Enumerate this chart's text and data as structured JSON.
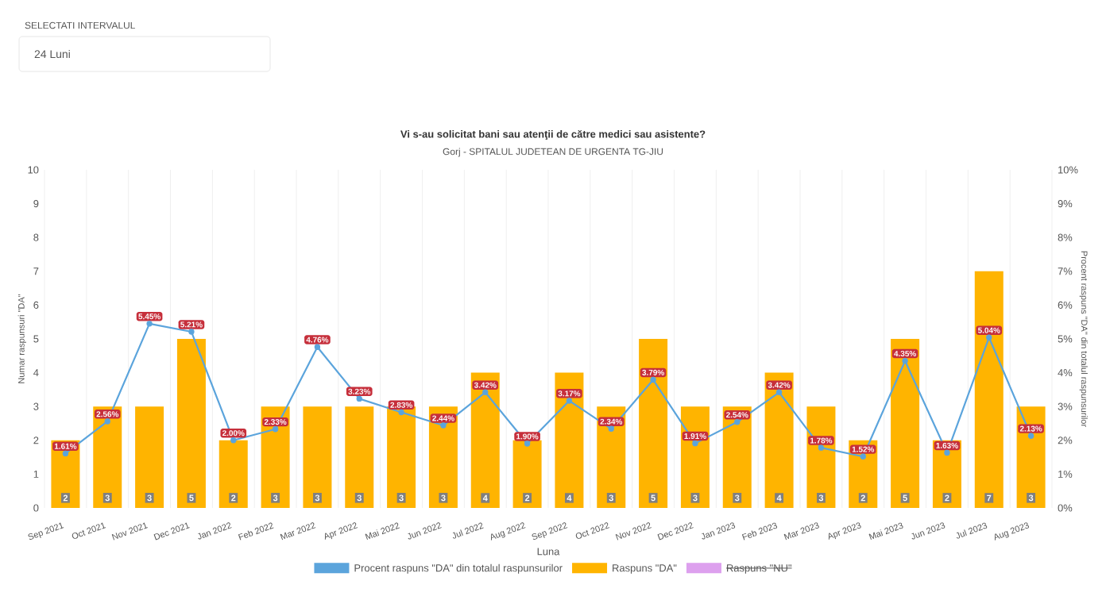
{
  "chart_data": {
    "type": "bar",
    "title": "Vi s-au solicitat bani sau atenţii de către medici sau asistente?",
    "subtitle": "Gorj - SPITALUL JUDETEAN DE URGENTA TG-JIU",
    "xlabel": "Luna",
    "ylabel": "Numar raspunsuri \"DA\"",
    "y2label": "Procent raspuns \"DA\" din totalul raspunsurilor",
    "annotations": [
      "SELECTATI INTERVALUL",
      "24 Luni"
    ],
    "categories": [
      "Sep 2021",
      "Oct 2021",
      "Nov 2021",
      "Dec 2021",
      "Jan 2022",
      "Feb 2022",
      "Mar 2022",
      "Apr 2022",
      "Mai 2022",
      "Jun 2022",
      "Jul 2022",
      "Aug 2022",
      "Sep 2022",
      "Oct 2022",
      "Nov 2022",
      "Dec 2022",
      "Jan 2023",
      "Feb 2023",
      "Mar 2023",
      "Apr 2023",
      "Mai 2023",
      "Jun 2023",
      "Jul 2023",
      "Aug 2023"
    ],
    "series": [
      {
        "name": "Procent raspuns \"DA\" din totalul raspunsurilor",
        "type": "line",
        "axis": "y2",
        "color": "#5ba4dc",
        "values": [
          1.61,
          2.56,
          5.45,
          5.21,
          2.0,
          2.33,
          4.76,
          3.23,
          2.83,
          2.44,
          3.42,
          1.9,
          3.17,
          2.34,
          3.79,
          1.91,
          2.54,
          3.42,
          1.78,
          1.52,
          4.35,
          1.63,
          5.04,
          2.13
        ],
        "value_labels": [
          "1.61%",
          "2.56%",
          "5.45%",
          "5.21%",
          "2.00%",
          "2.33%",
          "4.76%",
          "3.23%",
          "2.83%",
          "2.44%",
          "3.42%",
          "1.90%",
          "3.17%",
          "2.34%",
          "3.79%",
          "1.91%",
          "2.54%",
          "3.42%",
          "1.78%",
          "1.52%",
          "4.35%",
          "1.63%",
          "5.04%",
          "2.13%"
        ]
      },
      {
        "name": "Raspuns \"DA\"",
        "color": "#ffb400",
        "values": [
          2,
          3,
          3,
          5,
          2,
          3,
          3,
          3,
          3,
          3,
          4,
          2,
          4,
          3,
          5,
          3,
          3,
          4,
          3,
          2,
          5,
          2,
          7,
          3
        ]
      },
      {
        "name": "Raspuns \"NU\"",
        "color": "#dda0ee",
        "values": [
          null,
          null,
          null,
          null,
          null,
          null,
          null,
          null,
          null,
          null,
          null,
          null,
          null,
          null,
          null,
          null,
          null,
          null,
          null,
          null,
          null,
          null,
          null,
          null
        ]
      }
    ],
    "data_labels": true,
    "marker": "circle",
    "grid": "x",
    "legend": "bottom",
    "ylim": [
      0,
      10
    ],
    "yticks": [
      0,
      1,
      2,
      3,
      4,
      5,
      6,
      7,
      8,
      9,
      10
    ],
    "y2lim": [
      0,
      10
    ],
    "y2ticks": [
      {
        "value": 0,
        "label": "0%"
      },
      {
        "value": 1,
        "label": "1%"
      },
      {
        "value": 2,
        "label": "2%"
      },
      {
        "value": 3,
        "label": "3%"
      },
      {
        "value": 4,
        "label": "4%"
      },
      {
        "value": 5,
        "label": "5%"
      },
      {
        "value": 6,
        "label": "6%"
      },
      {
        "value": 7,
        "label": "7%"
      },
      {
        "value": 8,
        "label": "8%"
      },
      {
        "value": 9,
        "label": "9%"
      },
      {
        "value": 10,
        "label": "10%"
      }
    ]
  }
}
